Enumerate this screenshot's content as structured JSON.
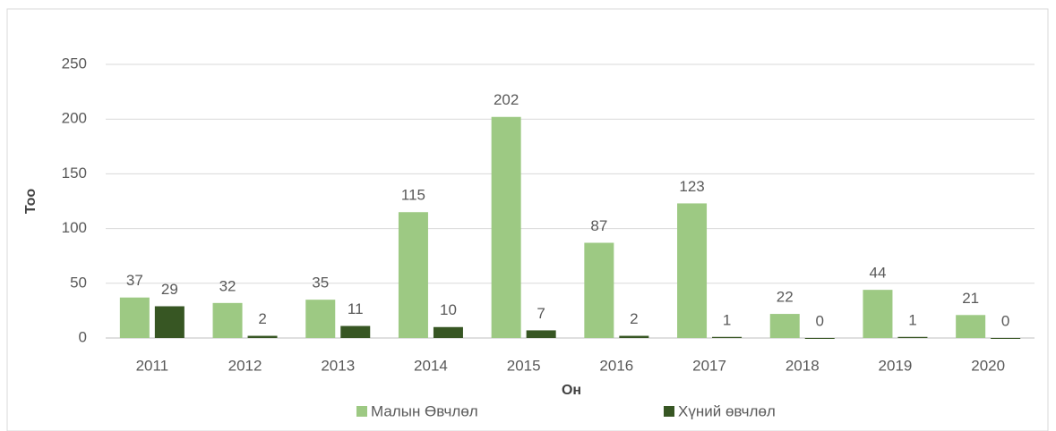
{
  "chart_data": {
    "type": "bar",
    "categories": [
      "2011",
      "2012",
      "2013",
      "2014",
      "2015",
      "2016",
      "2017",
      "2018",
      "2019",
      "2020"
    ],
    "series": [
      {
        "name": "Малын Өвчлөл",
        "color": "#9dc983",
        "values": [
          37,
          32,
          35,
          115,
          202,
          87,
          123,
          22,
          44,
          21
        ]
      },
      {
        "name": "Хүний өвчлөл",
        "color": "#375623",
        "values": [
          29,
          2,
          11,
          10,
          7,
          2,
          1,
          0,
          1,
          0
        ]
      }
    ],
    "x_label": "Он",
    "y_label": "Тоо",
    "ylim": [
      0,
      250
    ],
    "yticks": [
      0,
      50,
      100,
      150,
      200,
      250
    ],
    "grid": true,
    "legend": "bottom"
  }
}
